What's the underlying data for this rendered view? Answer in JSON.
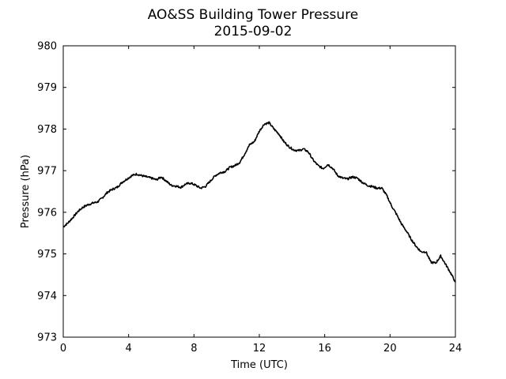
{
  "chart_data": {
    "type": "line",
    "title": "AO&SS Building Tower Pressure",
    "subtitle": "2015-09-02",
    "xlabel": "Time (UTC)",
    "ylabel": "Pressure (hPa)",
    "xlim": [
      0,
      24
    ],
    "ylim": [
      973,
      980
    ],
    "xticks": [
      0,
      4,
      8,
      12,
      16,
      20,
      24
    ],
    "yticks": [
      973,
      974,
      975,
      976,
      977,
      978,
      979,
      980
    ],
    "grid": false,
    "line_color": "#000000",
    "series": [
      {
        "x": [
          0,
          0.3,
          0.6,
          0.9,
          1.2,
          1.5,
          1.8,
          2.1,
          2.4,
          2.7,
          3.0,
          3.3,
          3.6,
          3.9,
          4.2,
          4.5,
          4.8,
          5.1,
          5.4,
          5.7,
          6.0,
          6.3,
          6.6,
          6.9,
          7.2,
          7.5,
          7.8,
          8.1,
          8.4,
          8.7,
          9.0,
          9.3,
          9.6,
          9.9,
          10.2,
          10.5,
          10.8,
          11.1,
          11.4,
          11.7,
          12.0,
          12.3,
          12.6,
          12.9,
          13.2,
          13.5,
          13.8,
          14.1,
          14.4,
          14.7,
          15.0,
          15.3,
          15.6,
          15.9,
          16.2,
          16.5,
          16.8,
          17.1,
          17.4,
          17.7,
          18.0,
          18.3,
          18.6,
          18.9,
          19.2,
          19.5,
          19.8,
          20.1,
          20.4,
          20.7,
          21.0,
          21.3,
          21.6,
          21.9,
          22.2,
          22.5,
          22.8,
          23.1,
          23.4,
          23.7,
          24.0
        ],
        "values": [
          975.65,
          975.75,
          975.88,
          976.02,
          976.12,
          976.18,
          976.22,
          976.25,
          976.35,
          976.48,
          976.55,
          976.6,
          976.72,
          976.8,
          976.88,
          976.92,
          976.88,
          976.85,
          976.82,
          976.78,
          976.85,
          976.75,
          976.65,
          976.63,
          976.6,
          976.68,
          976.7,
          976.65,
          976.58,
          976.62,
          976.75,
          976.88,
          976.95,
          976.98,
          977.08,
          977.12,
          977.2,
          977.4,
          977.62,
          977.7,
          977.95,
          978.12,
          978.15,
          978.0,
          977.88,
          977.7,
          977.58,
          977.5,
          977.48,
          977.52,
          977.45,
          977.25,
          977.12,
          977.05,
          977.15,
          977.05,
          976.88,
          976.82,
          976.8,
          976.85,
          976.82,
          976.72,
          976.65,
          976.62,
          976.58,
          976.58,
          976.4,
          976.15,
          975.95,
          975.72,
          975.55,
          975.35,
          975.18,
          975.05,
          975.05,
          974.8,
          974.78,
          974.95,
          974.75,
          974.55,
          974.32
        ]
      }
    ]
  }
}
